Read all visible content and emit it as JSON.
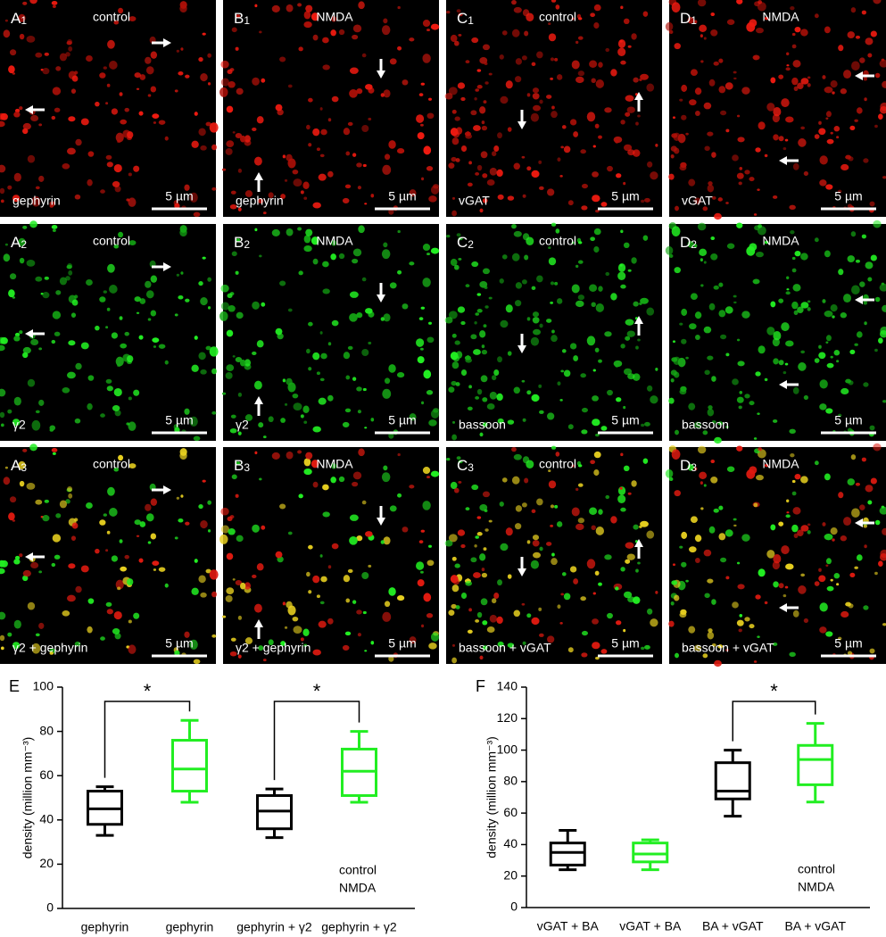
{
  "panels": [
    {
      "letter": "A",
      "index": "1",
      "condition": "control",
      "stain": "gephyrin",
      "scale": "5 µm",
      "channel": "red"
    },
    {
      "letter": "B",
      "index": "1",
      "condition": "NMDA",
      "stain": "gephyrin",
      "scale": "5 µm",
      "channel": "red"
    },
    {
      "letter": "C",
      "index": "1",
      "condition": "control",
      "stain": "vGAT",
      "scale": "5 µm",
      "channel": "red"
    },
    {
      "letter": "D",
      "index": "1",
      "condition": "NMDA",
      "stain": "vGAT",
      "scale": "5 µm",
      "channel": "red"
    },
    {
      "letter": "A",
      "index": "2",
      "condition": "control",
      "stain": "γ2",
      "scale": "5 µm",
      "channel": "green"
    },
    {
      "letter": "B",
      "index": "2",
      "condition": "NMDA",
      "stain": "γ2",
      "scale": "5 µm",
      "channel": "green"
    },
    {
      "letter": "C",
      "index": "2",
      "condition": "control",
      "stain": "bassoon",
      "scale": "5 µm",
      "channel": "green"
    },
    {
      "letter": "D",
      "index": "2",
      "condition": "NMDA",
      "stain": "bassoon",
      "scale": "5 µm",
      "channel": "green"
    },
    {
      "letter": "A",
      "index": "3",
      "condition": "control",
      "stain": "γ2 + gephyrin",
      "scale": "5 µm",
      "channel": "merge"
    },
    {
      "letter": "B",
      "index": "3",
      "condition": "NMDA",
      "stain": "γ2 + gephyrin",
      "scale": "5 µm",
      "channel": "merge"
    },
    {
      "letter": "C",
      "index": "3",
      "condition": "control",
      "stain": "bassoon + vGAT",
      "scale": "5 µm",
      "channel": "merge"
    },
    {
      "letter": "D",
      "index": "3",
      "condition": "NMDA",
      "stain": "bassoon + vGAT",
      "scale": "5 µm",
      "channel": "merge"
    }
  ],
  "chart_data": [
    {
      "type": "box",
      "panel_label": "E",
      "ylabel": "density (million mm⁻³)",
      "ylim": [
        0,
        100
      ],
      "yticks": [
        0,
        20,
        40,
        60,
        80,
        100
      ],
      "categories": [
        "gephyrin",
        "gephyrin",
        "gephyrin + γ2",
        "gephyrin + γ2"
      ],
      "boxes": [
        {
          "min": 33,
          "q1": 38,
          "median": 45,
          "q3": 53,
          "max": 55
        },
        {
          "min": 48,
          "q1": 53,
          "median": 63,
          "q3": 76,
          "max": 85
        },
        {
          "min": 32,
          "q1": 36,
          "median": 44,
          "q3": 51,
          "max": 54
        },
        {
          "min": 48,
          "q1": 51,
          "median": 62,
          "q3": 72,
          "max": 80
        }
      ],
      "series": [
        {
          "name": "control",
          "color": "#000000"
        },
        {
          "name": "NMDA",
          "color": "#22ee22"
        }
      ],
      "significance": [
        {
          "text": "*",
          "pair": [
            0,
            1
          ]
        },
        {
          "text": "*",
          "pair": [
            2,
            3
          ]
        }
      ]
    },
    {
      "type": "box",
      "panel_label": "F",
      "ylabel": "density (million mm⁻³)",
      "ylim": [
        0,
        140
      ],
      "yticks": [
        0,
        20,
        40,
        60,
        80,
        100,
        120,
        140
      ],
      "categories": [
        "vGAT + BA",
        "vGAT + BA",
        "BA + vGAT",
        "BA + vGAT"
      ],
      "boxes": [
        {
          "min": 24,
          "q1": 27,
          "median": 35,
          "q3": 41,
          "max": 49
        },
        {
          "min": 24,
          "q1": 29,
          "median": 34,
          "q3": 41,
          "max": 43
        },
        {
          "min": 58,
          "q1": 69,
          "median": 74,
          "q3": 92,
          "max": 100
        },
        {
          "min": 67,
          "q1": 78,
          "median": 94,
          "q3": 103,
          "max": 117
        }
      ],
      "series": [
        {
          "name": "control",
          "color": "#000000"
        },
        {
          "name": "NMDA",
          "color": "#22ee22"
        }
      ],
      "significance": [
        {
          "text": "*",
          "pair": [
            2,
            3
          ]
        }
      ]
    }
  ]
}
